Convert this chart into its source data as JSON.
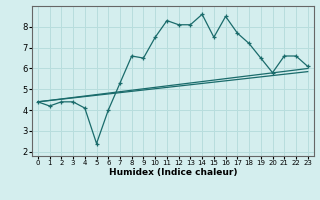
{
  "title": "",
  "xlabel": "Humidex (Indice chaleur)",
  "ylabel": "",
  "bg_color": "#d4eeee",
  "line_color": "#1a6b6b",
  "grid_color": "#b8dddd",
  "xlim": [
    -0.5,
    23.5
  ],
  "ylim": [
    1.8,
    9.0
  ],
  "xticks": [
    0,
    1,
    2,
    3,
    4,
    5,
    6,
    7,
    8,
    9,
    10,
    11,
    12,
    13,
    14,
    15,
    16,
    17,
    18,
    19,
    20,
    21,
    22,
    23
  ],
  "yticks": [
    2,
    3,
    4,
    5,
    6,
    7,
    8
  ],
  "data_x": [
    0,
    1,
    2,
    3,
    4,
    5,
    6,
    7,
    8,
    9,
    10,
    11,
    12,
    13,
    14,
    15,
    16,
    17,
    18,
    19,
    20,
    21,
    22,
    23
  ],
  "data_y": [
    4.4,
    4.2,
    4.4,
    4.4,
    4.1,
    2.4,
    4.0,
    5.3,
    6.6,
    6.5,
    7.5,
    8.3,
    8.1,
    8.1,
    8.6,
    7.5,
    8.5,
    7.7,
    7.2,
    6.5,
    5.8,
    6.6,
    6.6,
    6.1
  ],
  "trend_x": [
    0,
    23
  ],
  "trend_y": [
    4.4,
    6.0
  ],
  "trend2_x": [
    0,
    23
  ],
  "trend2_y": [
    4.4,
    5.85
  ],
  "xlabel_fontsize": 6.5,
  "tick_fontsize_x": 5.0,
  "tick_fontsize_y": 6.0
}
